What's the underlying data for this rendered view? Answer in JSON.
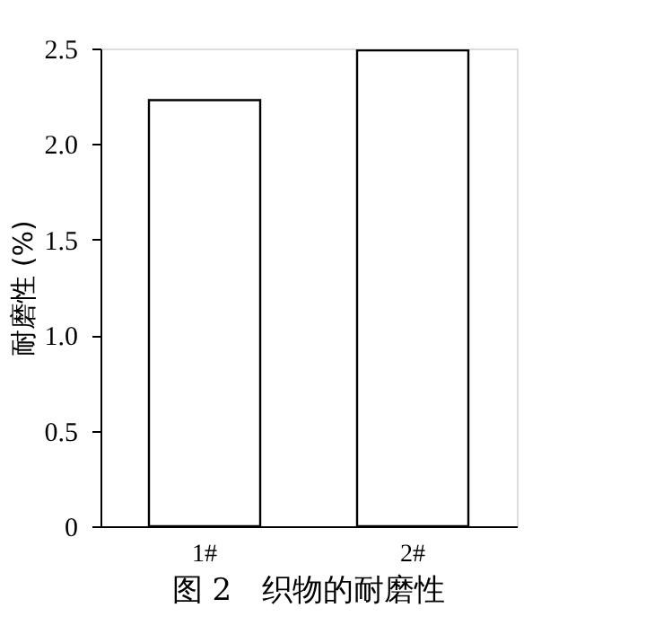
{
  "chart_data": {
    "type": "bar",
    "title": "图 2　织物的耐磨性",
    "ylabel": "耐磨性 (%)",
    "categories": [
      "1#",
      "2#"
    ],
    "values": [
      2.23,
      2.49
    ],
    "colors": [
      "#ffffff",
      "#ffffff"
    ],
    "ylim": [
      0,
      2.5
    ],
    "yticks": [
      0,
      0.5,
      {
        "value": 1,
        "label": "1.0"
      },
      1.5,
      {
        "value": 2,
        "label": "2.0"
      },
      2.5
    ],
    "grid": false
  }
}
